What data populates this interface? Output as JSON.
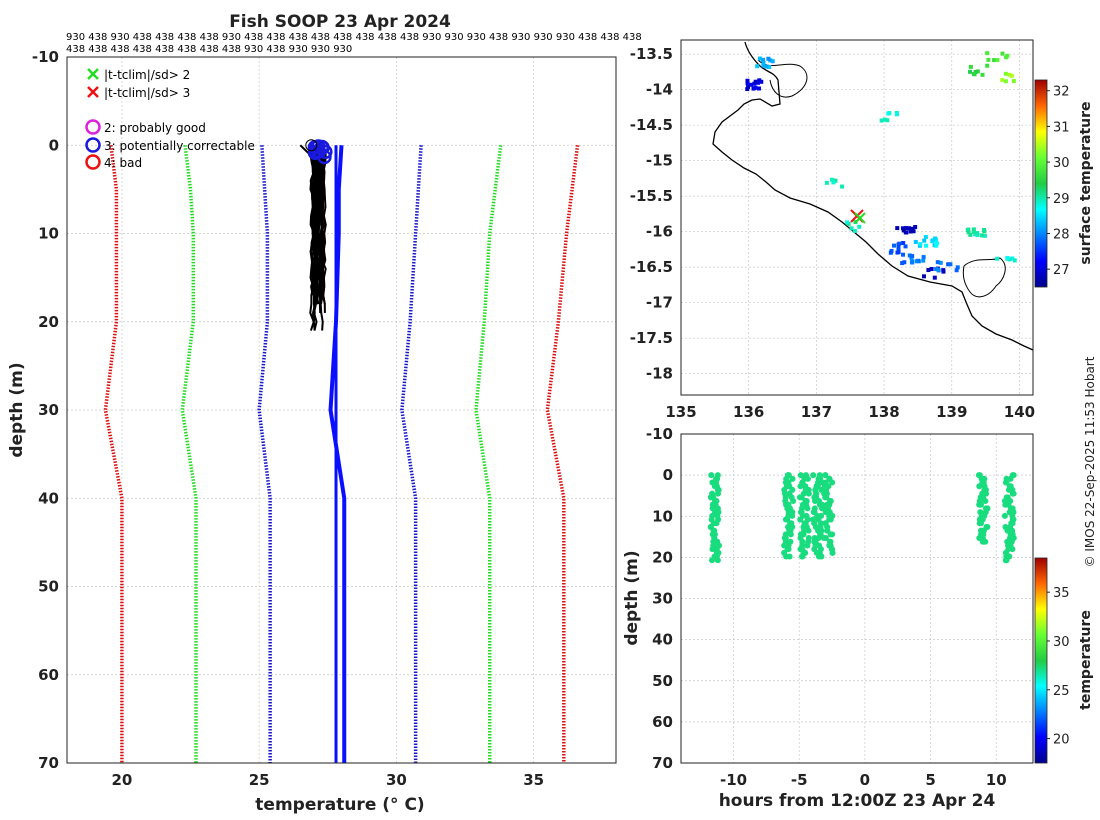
{
  "title": "Fish SOOP 23 Apr 2024",
  "credit": "© IMOS 22-Sep-2025 11:53 Hobart",
  "header_codes": {
    "row1": "930 438 930 438 438 438 438 930 438 438 438 438 438 438 438 438 930 930 930 438 930 930 930 438 438 438",
    "row2": "438 438 438 438 438 438 438 438 930 438 930 930 930"
  },
  "legend": {
    "x2": "|t-tclim|/sd> 2",
    "x3": "|t-tclim|/sd> 3",
    "q2": "2: probably good",
    "q3": "3: potentially correctable",
    "q4": "4: bad"
  },
  "colors": {
    "sd3": "#dd1111",
    "sd2": "#22dd22",
    "sd1": "#1a1acc",
    "clim": "#0a10ff",
    "profile": "#000000",
    "qc2": "#dd22dd",
    "qc3": "#1a1add",
    "qc4": "#ee1111",
    "x2": "#22dd22",
    "x3": "#ee1111"
  },
  "chart_data": [
    {
      "type": "line",
      "name": "profile-temperature-depth",
      "xlabel": "temperature (° C)",
      "ylabel": "depth (m)",
      "xlim": [
        18,
        38
      ],
      "ylim": [
        -10,
        70
      ],
      "xticks": [
        "20",
        "25",
        "30",
        "35"
      ],
      "yticks": [
        "-10",
        "0",
        "10",
        "20",
        "30",
        "40",
        "50",
        "60",
        "70"
      ],
      "depths": [
        0,
        5,
        10,
        20,
        30,
        40,
        50,
        60,
        70
      ],
      "series": [
        {
          "name": "clim-3sd-low",
          "temps": [
            19.6,
            19.8,
            19.8,
            19.8,
            19.4,
            20.0,
            20.0,
            20.0,
            20.0
          ]
        },
        {
          "name": "clim-2sd-low",
          "temps": [
            22.3,
            22.5,
            22.6,
            22.6,
            22.2,
            22.7,
            22.7,
            22.7,
            22.7
          ]
        },
        {
          "name": "clim-1sd-low",
          "temps": [
            25.1,
            25.2,
            25.3,
            25.3,
            25.0,
            25.4,
            25.4,
            25.4,
            25.4
          ]
        },
        {
          "name": "clim-mean",
          "temps": [
            28.0,
            27.9,
            27.9,
            27.8,
            27.6,
            28.1,
            28.1,
            28.1,
            28.1
          ]
        },
        {
          "name": "clim-1sd-high",
          "temps": [
            30.9,
            30.8,
            30.7,
            30.5,
            30.2,
            30.7,
            30.7,
            30.7,
            30.7
          ]
        },
        {
          "name": "clim-2sd-high",
          "temps": [
            33.8,
            33.6,
            33.4,
            33.2,
            32.9,
            33.4,
            33.4,
            33.4,
            33.4
          ]
        },
        {
          "name": "clim-3sd-high",
          "temps": [
            36.6,
            36.4,
            36.2,
            35.9,
            35.5,
            36.1,
            36.1,
            36.1,
            36.1
          ]
        },
        {
          "name": "clim-vertical-line",
          "temps": [
            27.8,
            27.8,
            27.8,
            27.8,
            27.8,
            27.8,
            27.8,
            27.8,
            27.8
          ]
        }
      ],
      "profiles": {
        "count": 26,
        "temp_min": 26.9,
        "temp_max": 27.4,
        "depth_max": 22
      }
    },
    {
      "type": "heatmap",
      "name": "map-surface-temperature",
      "xlim": [
        135,
        140.2
      ],
      "ylim": [
        -18.3,
        -13.3
      ],
      "xticks": [
        "135",
        "136",
        "137",
        "138",
        "139",
        "140"
      ],
      "yticks": [
        "-13.5",
        "-14",
        "-14.5",
        "-15",
        "-15.5",
        "-16",
        "-16.5",
        "-17",
        "-17.5",
        "-18"
      ],
      "colorbar": {
        "label": "surface temperature",
        "range": [
          26.5,
          32.3
        ],
        "ticks": [
          "27",
          "28",
          "29",
          "30",
          "31",
          "32"
        ]
      },
      "clusters": [
        {
          "lon": 136.25,
          "lat": -13.6,
          "value": 28.2
        },
        {
          "lon": 136.0,
          "lat": -13.9,
          "value": 27.0
        },
        {
          "lon": 139.65,
          "lat": -13.5,
          "value": 29.8
        },
        {
          "lon": 139.4,
          "lat": -13.7,
          "value": 29.5
        },
        {
          "lon": 139.8,
          "lat": -13.8,
          "value": 30.4
        },
        {
          "lon": 138.0,
          "lat": -14.35,
          "value": 28.8
        },
        {
          "lon": 137.2,
          "lat": -15.3,
          "value": 28.9
        },
        {
          "lon": 137.5,
          "lat": -15.9,
          "value": 29.0
        },
        {
          "lon": 138.2,
          "lat": -16.2,
          "value": 27.7
        },
        {
          "lon": 138.4,
          "lat": -16.35,
          "value": 27.9
        },
        {
          "lon": 138.7,
          "lat": -16.55,
          "value": 26.8
        },
        {
          "lon": 138.9,
          "lat": -16.45,
          "value": 27.9
        },
        {
          "lon": 139.3,
          "lat": -16.0,
          "value": 29.0
        },
        {
          "lon": 139.8,
          "lat": -16.4,
          "value": 28.8
        },
        {
          "lon": 138.3,
          "lat": -15.95,
          "value": 26.8
        },
        {
          "lon": 138.6,
          "lat": -16.1,
          "value": 28.5
        }
      ]
    },
    {
      "type": "scatter",
      "name": "time-depth-temperature",
      "xlabel": "hours from 12:00Z 23 Apr 24",
      "ylabel": "depth (m)",
      "xlim": [
        -14,
        12.8
      ],
      "ylim": [
        -10,
        70
      ],
      "xticks": [
        "-10",
        "-5",
        "0",
        "5",
        "10"
      ],
      "yticks": [
        "-10",
        "0",
        "10",
        "20",
        "30",
        "40",
        "50",
        "60",
        "70"
      ],
      "colorbar": {
        "label": "temperature",
        "range": [
          17.5,
          38.5
        ],
        "ticks": [
          "20",
          "25",
          "30",
          "35"
        ]
      },
      "casts": [
        {
          "hour": -11.4,
          "depth_max": 21,
          "temp": 27.2
        },
        {
          "hour": -5.8,
          "depth_max": 20,
          "temp": 27.2
        },
        {
          "hour": -4.6,
          "depth_max": 20,
          "temp": 27.2
        },
        {
          "hour": -3.6,
          "depth_max": 20,
          "temp": 27.2
        },
        {
          "hour": -2.8,
          "depth_max": 19,
          "temp": 27.2
        },
        {
          "hour": 9.0,
          "depth_max": 17,
          "temp": 27.2
        },
        {
          "hour": 11.0,
          "depth_max": 21,
          "temp": 27.2
        }
      ]
    }
  ]
}
